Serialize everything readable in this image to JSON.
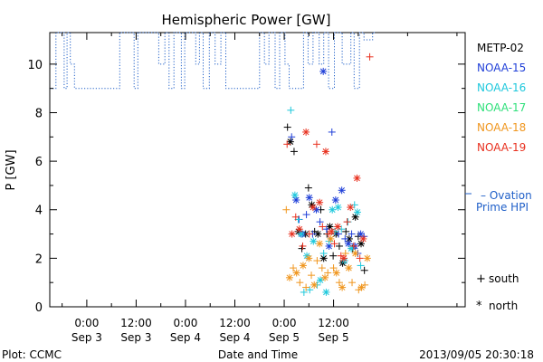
{
  "chart_data": {
    "type": "scatter",
    "title": "Hemispheric Power [GW]",
    "ylabel": "P [GW]",
    "xlabel": "Date and Time",
    "footer_left": "Plot: CCMC",
    "footer_right": "2013/09/05 20:30:18",
    "ylim": [
      0,
      11.3
    ],
    "xlim_hours": [
      -9,
      92
    ],
    "y_ticks": [
      0,
      2,
      4,
      6,
      8,
      10
    ],
    "x_ticks": [
      {
        "hour": 0,
        "time": "0:00",
        "date": "Sep 3"
      },
      {
        "hour": 12,
        "time": "12:00",
        "date": "Sep 3"
      },
      {
        "hour": 24,
        "time": "0:00",
        "date": "Sep 4"
      },
      {
        "hour": 36,
        "time": "12:00",
        "date": "Sep 4"
      },
      {
        "hour": 48,
        "time": "0:00",
        "date": "Sep 5"
      },
      {
        "hour": 60,
        "time": "12:00",
        "date": "Sep 5"
      }
    ],
    "legend": [
      {
        "name": "METP-02",
        "color": "#000000"
      },
      {
        "name": "NOAA-15",
        "color": "#1f3fd8"
      },
      {
        "name": "NOAA-16",
        "color": "#1ec8dc"
      },
      {
        "name": "NOAA-17",
        "color": "#2ee07a"
      },
      {
        "name": "NOAA-18",
        "color": "#f0961e"
      },
      {
        "name": "NOAA-19",
        "color": "#e8301e"
      }
    ],
    "ovation_label_line1": "– Ovation",
    "ovation_label_line2": "Prime HPI",
    "ovation_color": "#1f5fc8",
    "marker_key": [
      {
        "symbol": "+",
        "label": "south"
      },
      {
        "symbol": "*",
        "label": "north"
      }
    ],
    "ovation_series": {
      "name": "Ovation Prime HPI",
      "x": [
        -9,
        -7.5,
        -7.5,
        -5.5,
        -5.5,
        -4.8,
        -4.8,
        -4,
        -4,
        -3,
        -3,
        -1.8,
        -1.8,
        8,
        8,
        11.5,
        11.5,
        12.4,
        12.4,
        13.4,
        13.4,
        17.5,
        17.5,
        19,
        19,
        20,
        20,
        21.2,
        21.2,
        23,
        23,
        23.8,
        23.8,
        26.5,
        26.5,
        27.4,
        27.4,
        28.3,
        28.3,
        29.8,
        29.8,
        31.2,
        31.2,
        32.6,
        32.6,
        33.8,
        33.8,
        42,
        42,
        43.2,
        43.2,
        44.3,
        44.3,
        45.8,
        45.8,
        46.9,
        46.9,
        48.2,
        48.2,
        49.2,
        49.2,
        52.7,
        52.7,
        53.8,
        53.8,
        55,
        55,
        56.5,
        56.5,
        57.6,
        57.6,
        58.8,
        58.8,
        60.2,
        60.2,
        62.1,
        62.1,
        64.2,
        64.2,
        65,
        65,
        66.3,
        66.3,
        67.4,
        67.4,
        69.5,
        69.5,
        70.2
      ],
      "y": [
        9,
        9,
        11.3,
        11.3,
        9,
        9,
        11.3,
        11.3,
        10,
        10,
        9,
        9,
        9,
        9,
        11.3,
        11.3,
        9,
        9,
        11.3,
        11.3,
        11.3,
        11.3,
        10,
        10,
        11.3,
        11.3,
        9,
        9,
        11.3,
        11.3,
        9,
        9,
        11.3,
        11.3,
        10,
        10,
        11.3,
        11.3,
        9,
        9,
        11.3,
        11.3,
        10,
        10,
        11.3,
        11.3,
        9,
        9,
        11.3,
        11.3,
        10,
        10,
        11.3,
        11.3,
        9,
        9,
        11.3,
        11.3,
        10,
        10,
        9,
        9,
        11.3,
        11.3,
        10,
        10,
        11.3,
        11.3,
        10,
        10,
        11.3,
        11.3,
        9,
        9,
        11.3,
        11.3,
        10,
        10,
        11.3,
        11.3,
        9,
        9,
        11.3,
        11.3,
        11,
        11,
        11.3,
        11.3
      ]
    },
    "series": [
      {
        "name": "METP-02",
        "color": "#000000",
        "marker": [
          "+",
          "*"
        ],
        "x": [
          48.8,
          49.5,
          50.4,
          51.5,
          52.3,
          53.2,
          53.9,
          54.7,
          55.4,
          56.2,
          56.9,
          57.6,
          58.4,
          59.1,
          59.9,
          60.6,
          61.4,
          62.2,
          63.0,
          63.8,
          64.6,
          65.3,
          66.0,
          66.7,
          67.5
        ],
        "y": [
          7.4,
          6.8,
          6.4,
          3.1,
          2.4,
          3.0,
          4.9,
          4.2,
          3.1,
          3.0,
          4.0,
          2.0,
          3.0,
          3.3,
          2.1,
          3.0,
          2.5,
          1.8,
          3.1,
          2.8,
          2.4,
          3.7,
          2.9,
          2.6,
          1.5
        ]
      },
      {
        "name": "NOAA-15",
        "color": "#1f3fd8",
        "marker": [
          "+",
          "*"
        ],
        "x": [
          49.8,
          50.9,
          51.6,
          52.4,
          53.4,
          54.1,
          54.9,
          55.8,
          56.7,
          57.5,
          58.3,
          58.9,
          59.6,
          60.5,
          61.2,
          62.0,
          62.8,
          63.6,
          64.4,
          65.2,
          65.9,
          66.6,
          67.4
        ],
        "y": [
          7.0,
          4.4,
          3.6,
          3.0,
          3.8,
          4.5,
          3.0,
          4.0,
          3.5,
          9.7,
          3.2,
          2.5,
          7.2,
          4.4,
          3.0,
          4.8,
          2.8,
          2.6,
          3.0,
          2.5,
          2.2,
          3.0,
          2.9
        ]
      },
      {
        "name": "NOAA-16",
        "color": "#1ec8dc",
        "marker": [
          "+",
          "*"
        ],
        "x": [
          49.6,
          50.6,
          51.4,
          52.1,
          52.8,
          53.5,
          54.2,
          55.1,
          56.0,
          56.8,
          57.6,
          58.2,
          58.9,
          59.7,
          60.3,
          61.1,
          61.9,
          62.7,
          63.5,
          64.3,
          65.1,
          65.8,
          66.6
        ],
        "y": [
          8.1,
          4.6,
          3.6,
          3.0,
          0.6,
          2.1,
          0.7,
          2.7,
          0.9,
          1.1,
          2.2,
          0.6,
          2.7,
          4.0,
          3.1,
          4.1,
          3.2,
          1.9,
          3.5,
          2.4,
          4.2,
          3.9,
          1.7
        ]
      },
      {
        "name": "NOAA-18",
        "color": "#f0961e",
        "marker": [
          "+",
          "*"
        ],
        "x": [
          48.5,
          49.3,
          50.2,
          51.0,
          51.8,
          52.6,
          53.3,
          54.0,
          54.6,
          55.3,
          56.0,
          56.6,
          57.2,
          57.9,
          58.6,
          59.3,
          60.0,
          60.7,
          61.4,
          62.1,
          62.9,
          63.7,
          64.5,
          65.3,
          66.1,
          66.8,
          67.6,
          68.2
        ],
        "y": [
          4.0,
          1.2,
          1.6,
          1.4,
          1.0,
          1.7,
          0.8,
          2.0,
          1.3,
          0.9,
          1.9,
          2.6,
          1.6,
          1.2,
          1.4,
          2.8,
          1.6,
          1.4,
          1.0,
          0.8,
          2.2,
          1.6,
          1.0,
          2.2,
          0.7,
          0.8,
          0.9,
          2.0
        ]
      },
      {
        "name": "NOAA-19",
        "color": "#e8301e",
        "marker": [
          "+",
          "*"
        ],
        "x": [
          48.7,
          49.9,
          50.8,
          51.7,
          52.5,
          53.3,
          54.1,
          55.0,
          55.9,
          56.6,
          57.3,
          58.1,
          58.8,
          59.5,
          60.2,
          61.0,
          61.8,
          62.5,
          63.3,
          64.1,
          64.9,
          65.7,
          66.4,
          67.2,
          68.8
        ],
        "y": [
          6.7,
          3.0,
          3.7,
          3.2,
          2.5,
          7.2,
          3.0,
          4.1,
          6.7,
          4.3,
          3.3,
          6.4,
          3.0,
          3.1,
          2.6,
          3.3,
          2.1,
          2.0,
          3.5,
          4.1,
          2.5,
          5.3,
          2.0,
          2.8,
          10.3
        ]
      }
    ]
  }
}
